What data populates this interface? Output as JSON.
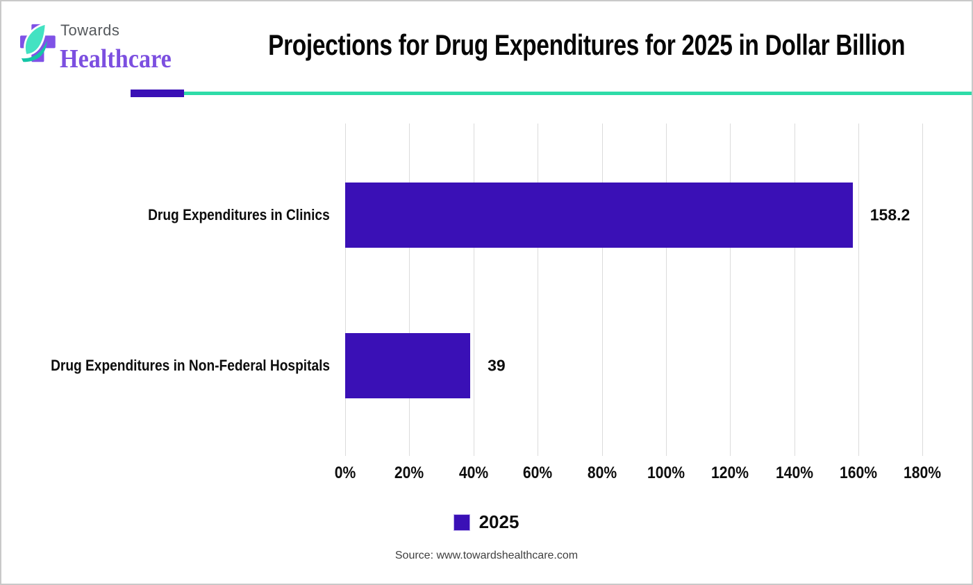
{
  "logo": {
    "top_text": "Towards",
    "bottom_text": "Healthcare",
    "cross_color": "#7f52e6",
    "leaf_color": "#43e2c2",
    "leaf_accent_color": "#14c5a6"
  },
  "header": {
    "title": "Projections for Drug Expenditures for 2025 in Dollar Billion"
  },
  "divider": {
    "purple_color": "#3a10b6",
    "teal_color": "#2edca8"
  },
  "chart_data": {
    "type": "bar",
    "orientation": "horizontal",
    "title": "Projections for Drug Expenditures for 2025 in Dollar Billion",
    "categories": [
      "Drug Expenditures in Clinics",
      "Drug Expenditures in Non-Federal Hospitals"
    ],
    "series": [
      {
        "name": "2025",
        "values": [
          158.2,
          39
        ]
      }
    ],
    "value_labels": [
      "158.2",
      "39"
    ],
    "x_axis": {
      "tick_labels": [
        "0%",
        "20%",
        "40%",
        "60%",
        "80%",
        "100%",
        "120%",
        "140%",
        "160%",
        "180%"
      ],
      "tick_values": [
        0,
        20,
        40,
        60,
        80,
        100,
        120,
        140,
        160,
        180
      ],
      "max_rendered": 194.4,
      "grid": true
    },
    "ylabel": "",
    "xlabel": "",
    "legend": {
      "position": "bottom",
      "entries": [
        "2025"
      ]
    },
    "colors": {
      "bar": "#3a10b6",
      "gridline": "#dbdbdb"
    }
  },
  "footer": {
    "source_text": "Source: www.towardshealthcare.com"
  }
}
